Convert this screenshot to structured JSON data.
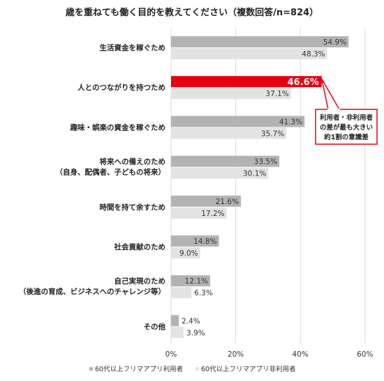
{
  "chart_data": {
    "type": "bar",
    "orientation": "horizontal",
    "title": "歳を重ねても働く目的を教えてください（複数回答/n=824）",
    "categories": [
      [
        "生活資金を稼ぐため"
      ],
      [
        "人とのつながりを持つため"
      ],
      [
        "趣味・娯楽の資金を稼ぐため"
      ],
      [
        "将来への備えのため",
        "（自身、配偶者、子どもの将来）"
      ],
      [
        "時間を持て余すため"
      ],
      [
        "社会貢献のため"
      ],
      [
        "自己実現のため",
        "（後進の育成、ビジネスへのチャレンジ等）"
      ],
      [
        "その他"
      ]
    ],
    "series": [
      {
        "name": "60代以上フリマアプリ利用者",
        "values": [
          54.9,
          46.6,
          41.3,
          33.5,
          21.6,
          14.8,
          12.1,
          2.4
        ],
        "value_labels": [
          "54.9%",
          "46.6%",
          "41.3%",
          "33.5%",
          "21.6%",
          "14.8%",
          "12.1%",
          "2.4%"
        ]
      },
      {
        "name": "60代以上フリマアプリ非利用者",
        "values": [
          48.3,
          37.1,
          35.7,
          30.1,
          17.2,
          9.0,
          6.3,
          3.9
        ],
        "value_labels": [
          "48.3%",
          "37.1%",
          "35.7%",
          "30.1%",
          "17.2%",
          "9.0%",
          "6.3%",
          "3.9%"
        ]
      }
    ],
    "highlight": {
      "series_index": 0,
      "category_index": 1
    },
    "xlim": [
      0,
      60
    ],
    "ticks": [
      0,
      20,
      40,
      60
    ],
    "tick_labels": [
      "0%",
      "20%",
      "40%",
      "60%"
    ],
    "legend_placement": "bottom",
    "grid": true,
    "annotation": {
      "lines": [
        "利用者・非利用者",
        "の差が最も大きい",
        "約1割の意識差"
      ]
    },
    "colors": {
      "user": "#b3b3b3",
      "non_user": "#e3e3e3",
      "highlight": "#e60012",
      "grid": "#d9d9d9",
      "callout_border": "#e60012"
    }
  }
}
